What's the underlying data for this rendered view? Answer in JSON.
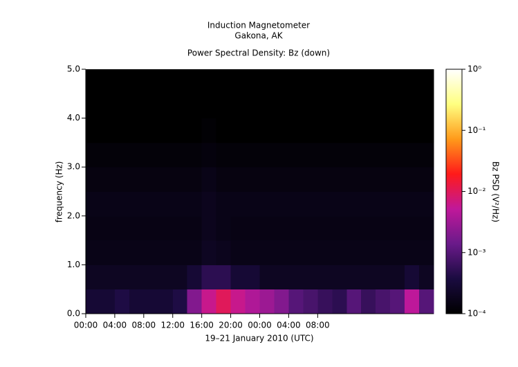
{
  "chart_data": {
    "type": "spectrogram",
    "title": "Induction Magnetometer",
    "subtitle": "Gakona, AK",
    "plot_title": "Power Spectral Density: Bz (down)",
    "x_label": "19–21 January 2010 (UTC)",
    "y_label": "frequency (Hz)",
    "z_label": "Bz PSD (V²/Hz)",
    "xlim": [
      0,
      48
    ],
    "xticks": [
      {
        "value": 0,
        "label": "00:00"
      },
      {
        "value": 4,
        "label": "04:00"
      },
      {
        "value": 8,
        "label": "08:00"
      },
      {
        "value": 12,
        "label": "12:00"
      },
      {
        "value": 16,
        "label": "16:00"
      },
      {
        "value": 20,
        "label": "20:00"
      },
      {
        "value": 24,
        "label": "00:00"
      },
      {
        "value": 28,
        "label": "04:00"
      },
      {
        "value": 32,
        "label": "08:00"
      }
    ],
    "ylim": [
      0,
      5
    ],
    "yticks": [
      {
        "value": 0,
        "label": "0.0"
      },
      {
        "value": 1,
        "label": "1.0"
      },
      {
        "value": 2,
        "label": "2.0"
      },
      {
        "value": 3,
        "label": "3.0"
      },
      {
        "value": 4,
        "label": "4.0"
      },
      {
        "value": 5,
        "label": "5.0"
      }
    ],
    "zlim": [
      0.0001,
      1
    ],
    "zscale": "log",
    "zticks": [
      {
        "value": 0.0001,
        "label": "10⁻⁴"
      },
      {
        "value": 0.001,
        "label": "10⁻³"
      },
      {
        "value": 0.01,
        "label": "10⁻²"
      },
      {
        "value": 0.1,
        "label": "10⁻¹"
      },
      {
        "value": 1,
        "label": "10⁰"
      }
    ],
    "colormap": [
      "#000000",
      "#1a0b40",
      "#6a1a8a",
      "#c0189a",
      "#ff1a1a",
      "#ff9a1a",
      "#ffff80",
      "#ffffff"
    ],
    "xbins": [
      0,
      2,
      4,
      6,
      8,
      10,
      12,
      14,
      16,
      18,
      20,
      22,
      24,
      26,
      28,
      30,
      32,
      34,
      36,
      38,
      40,
      42,
      44,
      46,
      48
    ],
    "ybins": [
      0,
      0.5,
      1,
      1.5,
      2,
      2.5,
      3,
      3.5,
      4,
      4.5,
      5
    ],
    "z": [
      [
        0.0003,
        0.0003,
        0.0004,
        0.0003,
        0.0003,
        0.0003,
        0.0004,
        0.002,
        0.006,
        0.01,
        0.006,
        0.004,
        0.003,
        0.002,
        0.001,
        0.0008,
        0.0006,
        0.0005,
        0.001,
        0.0006,
        0.0008,
        0.001,
        0.005,
        0.001
      ],
      [
        0.0002,
        0.0002,
        0.0002,
        0.0002,
        0.0002,
        0.0002,
        0.0002,
        0.0003,
        0.0005,
        0.0005,
        0.0003,
        0.0003,
        0.0002,
        0.0002,
        0.0002,
        0.0002,
        0.0002,
        0.0002,
        0.0002,
        0.0002,
        0.0002,
        0.0002,
        0.0003,
        0.0002
      ],
      [
        0.00016,
        0.00016,
        0.00016,
        0.00016,
        0.00016,
        0.00016,
        0.00016,
        0.00016,
        0.0002,
        0.00018,
        0.00016,
        0.00016,
        0.00016,
        0.00016,
        0.00016,
        0.00016,
        0.00016,
        0.00016,
        0.00016,
        0.00016,
        0.00016,
        0.00016,
        0.00016,
        0.00016
      ],
      [
        0.00015,
        0.00015,
        0.00015,
        0.00015,
        0.00015,
        0.00015,
        0.00015,
        0.00015,
        0.00018,
        0.00016,
        0.00015,
        0.00015,
        0.00015,
        0.00015,
        0.00015,
        0.00015,
        0.00015,
        0.00015,
        0.00015,
        0.00015,
        0.00015,
        0.00015,
        0.00015,
        0.00015
      ],
      [
        0.00016,
        0.00016,
        0.00016,
        0.00016,
        0.00016,
        0.00016,
        0.00016,
        0.00016,
        0.00018,
        0.00016,
        0.00016,
        0.00016,
        0.00016,
        0.00016,
        0.00016,
        0.00016,
        0.00016,
        0.00016,
        0.00016,
        0.00016,
        0.00016,
        0.00016,
        0.00016,
        0.00016
      ],
      [
        0.00014,
        0.00014,
        0.00014,
        0.00014,
        0.00014,
        0.00014,
        0.00014,
        0.00014,
        0.00016,
        0.00014,
        0.00014,
        0.00014,
        0.00014,
        0.00014,
        0.00014,
        0.00014,
        0.00014,
        0.00014,
        0.00014,
        0.00014,
        0.00014,
        0.00014,
        0.00014,
        0.00014
      ],
      [
        0.00012,
        0.00012,
        0.00012,
        0.00012,
        0.00012,
        0.00012,
        0.00012,
        0.00012,
        0.00013,
        0.00012,
        0.00012,
        0.00012,
        0.00012,
        0.00012,
        0.00012,
        0.00012,
        0.00012,
        0.00012,
        0.00012,
        0.00012,
        0.00012,
        0.00012,
        0.00012,
        0.00012
      ],
      [
        0.0001,
        0.0001,
        0.0001,
        0.0001,
        0.0001,
        0.0001,
        0.0001,
        0.0001,
        0.00011,
        0.0001,
        0.0001,
        0.0001,
        0.0001,
        0.0001,
        0.0001,
        0.0001,
        0.0001,
        0.0001,
        0.0001,
        0.0001,
        0.0001,
        0.0001,
        0.0001,
        0.0001
      ],
      [
        0.0001,
        0.0001,
        0.0001,
        0.0001,
        0.0001,
        0.0001,
        0.0001,
        0.0001,
        0.0001,
        0.0001,
        0.0001,
        0.0001,
        0.0001,
        0.0001,
        0.0001,
        0.0001,
        0.0001,
        0.0001,
        0.0001,
        0.0001,
        0.0001,
        0.0001,
        0.0001,
        0.0001
      ],
      [
        0.0001,
        0.0001,
        0.0001,
        0.0001,
        0.0001,
        0.0001,
        0.0001,
        0.0001,
        0.0001,
        0.0001,
        0.0001,
        0.0001,
        0.0001,
        0.0001,
        0.0001,
        0.0001,
        0.0001,
        0.0001,
        0.0001,
        0.0001,
        0.0001,
        0.0001,
        0.0001,
        0.0001
      ]
    ]
  }
}
